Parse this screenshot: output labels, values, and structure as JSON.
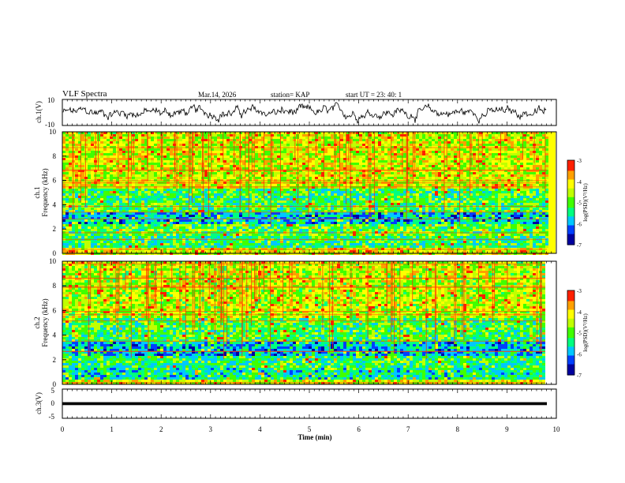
{
  "header": {
    "title": "VLF Spectra",
    "date": "Mar.14, 2026",
    "station": "station= KAP",
    "start_ut": "start  UT  =   23: 40: 1"
  },
  "chart_data": [
    {
      "type": "line",
      "name": "ch1-waveform",
      "ylabel": "ch.1(V)",
      "ylim": [
        -10,
        10
      ],
      "yticks": [
        "10",
        "-10"
      ],
      "xlim": [
        0,
        10
      ],
      "notes": "noisy trace roughly between -8 and +8 V"
    },
    {
      "type": "heatmap",
      "name": "ch1-spectrogram",
      "ylabel": "Frequency (kHz)",
      "channel_label": "ch.1",
      "ylim": [
        0,
        10
      ],
      "yticks": [
        "0",
        "2",
        "4",
        "6",
        "8",
        "10"
      ],
      "xlim": [
        0,
        9.8
      ],
      "colorbar": {
        "label": "log(PSD)(V²/Hz)",
        "range": [
          -7,
          -3
        ],
        "ticks": [
          "-3",
          "-4",
          "-5",
          "-6",
          "-7"
        ]
      },
      "band_levels_log_psd": [
        {
          "from_khz": 0.0,
          "to_khz": 0.5,
          "level": -4.2
        },
        {
          "from_khz": 0.5,
          "to_khz": 1.5,
          "level": -5.3
        },
        {
          "from_khz": 1.5,
          "to_khz": 2.5,
          "level": -5.0
        },
        {
          "from_khz": 2.5,
          "to_khz": 3.5,
          "level": -5.9
        },
        {
          "from_khz": 3.5,
          "to_khz": 4.5,
          "level": -5.1
        },
        {
          "from_khz": 4.5,
          "to_khz": 5.5,
          "level": -5.2
        },
        {
          "from_khz": 5.5,
          "to_khz": 10.0,
          "level": -4.4
        }
      ]
    },
    {
      "type": "heatmap",
      "name": "ch2-spectrogram",
      "ylabel": "Frequency (kHz)",
      "channel_label": "ch.2",
      "ylim": [
        0,
        10
      ],
      "yticks": [
        "0",
        "2",
        "4",
        "6",
        "8",
        "10"
      ],
      "xlim": [
        0,
        9.8
      ],
      "colorbar": {
        "label": "log(PSD)(V²/Hz)",
        "range": [
          -7,
          -3
        ],
        "ticks": [
          "-3",
          "-4",
          "-5",
          "-6",
          "-7"
        ]
      },
      "band_levels_log_psd": [
        {
          "from_khz": 0.0,
          "to_khz": 0.5,
          "level": -4.4
        },
        {
          "from_khz": 0.5,
          "to_khz": 1.5,
          "level": -5.5
        },
        {
          "from_khz": 1.5,
          "to_khz": 2.5,
          "level": -5.3
        },
        {
          "from_khz": 2.5,
          "to_khz": 3.5,
          "level": -5.9
        },
        {
          "from_khz": 3.5,
          "to_khz": 5.5,
          "level": -5.1
        },
        {
          "from_khz": 5.5,
          "to_khz": 10.0,
          "level": -4.5
        }
      ]
    },
    {
      "type": "line",
      "name": "ch3-voltage",
      "ylabel": "ch.3(V)",
      "ylim": [
        -5,
        5
      ],
      "yticks": [
        "5",
        "0",
        "-5"
      ],
      "xlim": [
        0,
        10
      ],
      "value_band": [
        -0.5,
        0.5
      ],
      "notes": "constant thick band near 0 V"
    }
  ],
  "x_axis": {
    "label": "Time (min)",
    "range": [
      0,
      10
    ],
    "ticks": [
      "0",
      "1",
      "2",
      "3",
      "4",
      "5",
      "6",
      "7",
      "8",
      "9",
      "10"
    ]
  },
  "colors": {
    "trace": "#000000",
    "cmap": [
      "#0000a0",
      "#0040ff",
      "#00c8ff",
      "#00ff80",
      "#40ff00",
      "#c0ff00",
      "#ffff00",
      "#ffa000",
      "#ff2000",
      "#ffffff"
    ]
  }
}
